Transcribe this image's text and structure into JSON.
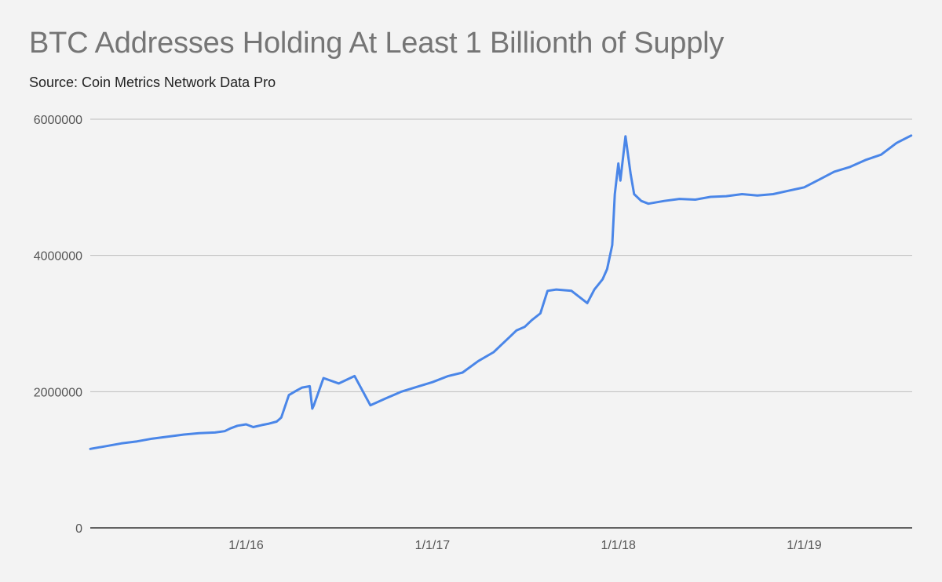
{
  "title": "BTC Addresses Holding At Least 1 Billionth of Supply",
  "subtitle": "Source: Coin Metrics Network Data Pro",
  "colors": {
    "background": "#f3f3f3",
    "line": "#4a86e8",
    "grid": "#bdbdbd",
    "axis": "#333333"
  },
  "chart_data": {
    "type": "line",
    "title": "BTC Addresses Holding At Least 1 Billionth of Supply",
    "subtitle": "Source: Coin Metrics Network Data Pro",
    "xlabel": "",
    "ylabel": "",
    "grid": true,
    "legend": "none",
    "ylim": [
      0,
      6000000
    ],
    "y_ticks": [
      0,
      2000000,
      4000000,
      6000000
    ],
    "y_tick_labels": [
      "0",
      "2000000",
      "4000000",
      "6000000"
    ],
    "xlim": [
      "2015-03-01",
      "2019-08-01"
    ],
    "x_ticks": [
      "2016-01-01",
      "2017-01-01",
      "2018-01-01",
      "2019-01-01"
    ],
    "x_tick_labels": [
      "1/1/16",
      "1/1/17",
      "1/1/18",
      "1/1/19"
    ],
    "series": [
      {
        "name": "",
        "color": "#4a86e8",
        "x": [
          "2015-03-01",
          "2015-04-01",
          "2015-05-01",
          "2015-06-01",
          "2015-07-01",
          "2015-08-01",
          "2015-09-01",
          "2015-10-01",
          "2015-11-01",
          "2015-11-20",
          "2015-12-01",
          "2015-12-15",
          "2016-01-01",
          "2016-01-15",
          "2016-02-01",
          "2016-02-15",
          "2016-03-01",
          "2016-03-07",
          "2016-03-10",
          "2016-03-25",
          "2016-04-10",
          "2016-04-20",
          "2016-05-05",
          "2016-05-10",
          "2016-05-13",
          "2016-06-01",
          "2016-07-01",
          "2016-08-01",
          "2016-09-01",
          "2016-10-01",
          "2016-11-01",
          "2016-12-01",
          "2017-01-01",
          "2017-02-01",
          "2017-03-01",
          "2017-04-01",
          "2017-05-01",
          "2017-06-01",
          "2017-06-15",
          "2017-07-01",
          "2017-07-15",
          "2017-08-01",
          "2017-08-15",
          "2017-09-01",
          "2017-10-01",
          "2017-11-01",
          "2017-11-15",
          "2017-12-01",
          "2017-12-10",
          "2017-12-20",
          "2017-12-25",
          "2018-01-01",
          "2018-01-05",
          "2018-01-15",
          "2018-01-25",
          "2018-02-01",
          "2018-02-15",
          "2018-03-01",
          "2018-04-01",
          "2018-05-01",
          "2018-06-01",
          "2018-07-01",
          "2018-08-01",
          "2018-09-01",
          "2018-10-01",
          "2018-11-01",
          "2018-12-01",
          "2019-01-01",
          "2019-02-01",
          "2019-03-01",
          "2019-04-01",
          "2019-05-01",
          "2019-06-01",
          "2019-07-01",
          "2019-07-30"
        ],
        "y": [
          1160000,
          1200000,
          1240000,
          1270000,
          1310000,
          1340000,
          1370000,
          1390000,
          1400000,
          1420000,
          1460000,
          1500000,
          1520000,
          1480000,
          1510000,
          1530000,
          1560000,
          1600000,
          1620000,
          1950000,
          2020000,
          2060000,
          2080000,
          1750000,
          1800000,
          2200000,
          2120000,
          2230000,
          1800000,
          1900000,
          2000000,
          2070000,
          2140000,
          2230000,
          2280000,
          2450000,
          2580000,
          2800000,
          2900000,
          2950000,
          3050000,
          3150000,
          3480000,
          3500000,
          3480000,
          3300000,
          3500000,
          3650000,
          3800000,
          4150000,
          4900000,
          5350000,
          5100000,
          5750000,
          5200000,
          4900000,
          4800000,
          4760000,
          4800000,
          4830000,
          4820000,
          4860000,
          4870000,
          4900000,
          4880000,
          4900000,
          4950000,
          5000000,
          5120000,
          5230000,
          5300000,
          5400000,
          5480000,
          5650000,
          5760000
        ]
      }
    ]
  }
}
